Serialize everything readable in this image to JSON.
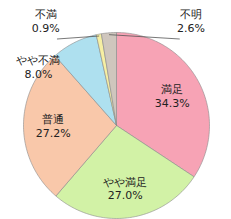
{
  "chart_data": {
    "type": "pie",
    "categories": [
      "満足",
      "やや満足",
      "普通",
      "やや不満",
      "不満",
      "不明"
    ],
    "values": [
      34.3,
      27.0,
      27.2,
      8.0,
      0.9,
      2.6
    ],
    "value_labels": [
      "34.3%",
      "27.0%",
      "27.2%",
      "8.0%",
      "0.9%",
      "2.6%"
    ],
    "colors": [
      "#f7a3b5",
      "#d2f2a6",
      "#f9c8aa",
      "#aee0ef",
      "#f6efa3",
      "#cfc6bd"
    ],
    "data_labels": true
  }
}
